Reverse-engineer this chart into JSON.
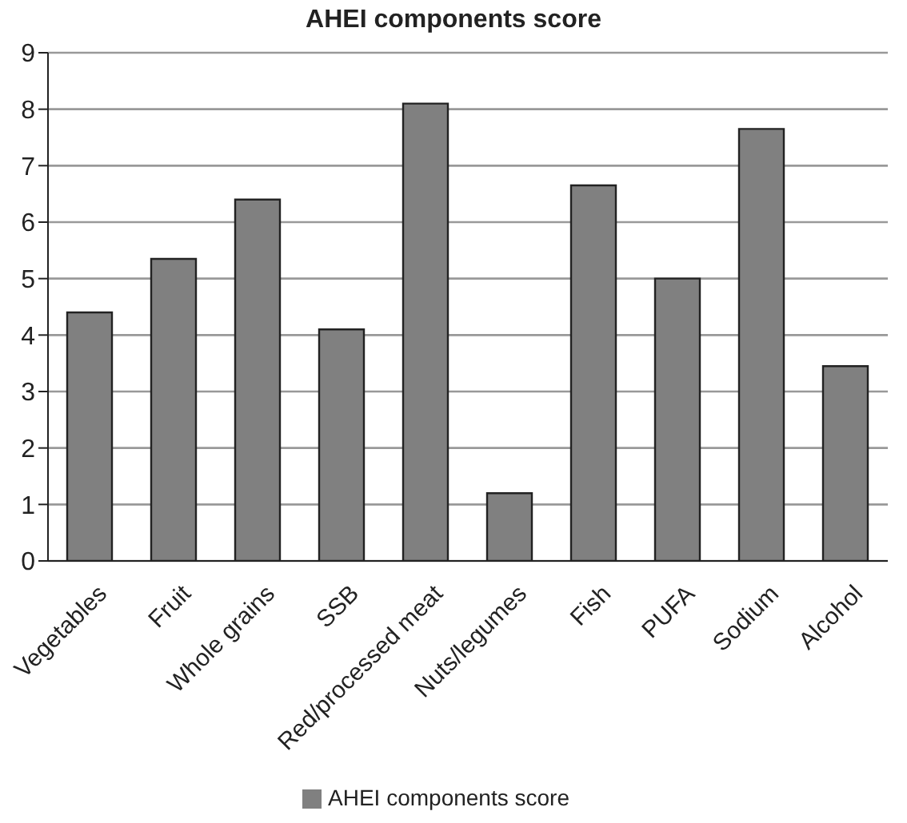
{
  "chart_data": {
    "type": "bar",
    "title": "AHEI components score",
    "categories": [
      "Vegetables",
      "Fruit",
      "Whole grains",
      "SSB",
      "Red/processed meat",
      "Nuts/legumes",
      "Fish",
      "PUFA",
      "Sodium",
      "Alcohol"
    ],
    "series": [
      {
        "name": "AHEI components score",
        "color": "#808080",
        "values": [
          4.4,
          5.35,
          6.4,
          4.1,
          8.1,
          1.2,
          6.65,
          5.0,
          7.65,
          3.45
        ]
      }
    ],
    "ylim": [
      0,
      9
    ],
    "yticks": [
      0,
      1,
      2,
      3,
      4,
      5,
      6,
      7,
      8,
      9
    ],
    "grid": "y",
    "legend": "bottom"
  }
}
